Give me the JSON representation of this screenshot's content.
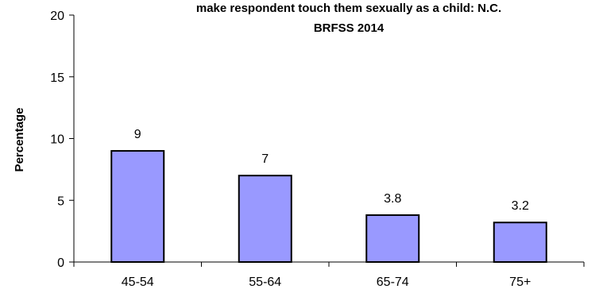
{
  "chart_data": {
    "type": "bar",
    "title_lines": [
      "make respondent touch them sexually as a child: N.C.",
      "BRFSS 2014"
    ],
    "xlabel": "",
    "ylabel": "Percentage",
    "categories": [
      "45-54",
      "55-64",
      "65-74",
      "75+"
    ],
    "values": [
      9,
      7,
      3.8,
      3.2
    ],
    "data_labels": [
      "9",
      "7",
      "3.8",
      "3.2"
    ],
    "ylim": [
      0,
      20
    ],
    "yticks": [
      0,
      5,
      10,
      15,
      20
    ],
    "grid": false,
    "legend": "none",
    "bar_color": "#9999ff",
    "bar_stroke": "#000000"
  }
}
